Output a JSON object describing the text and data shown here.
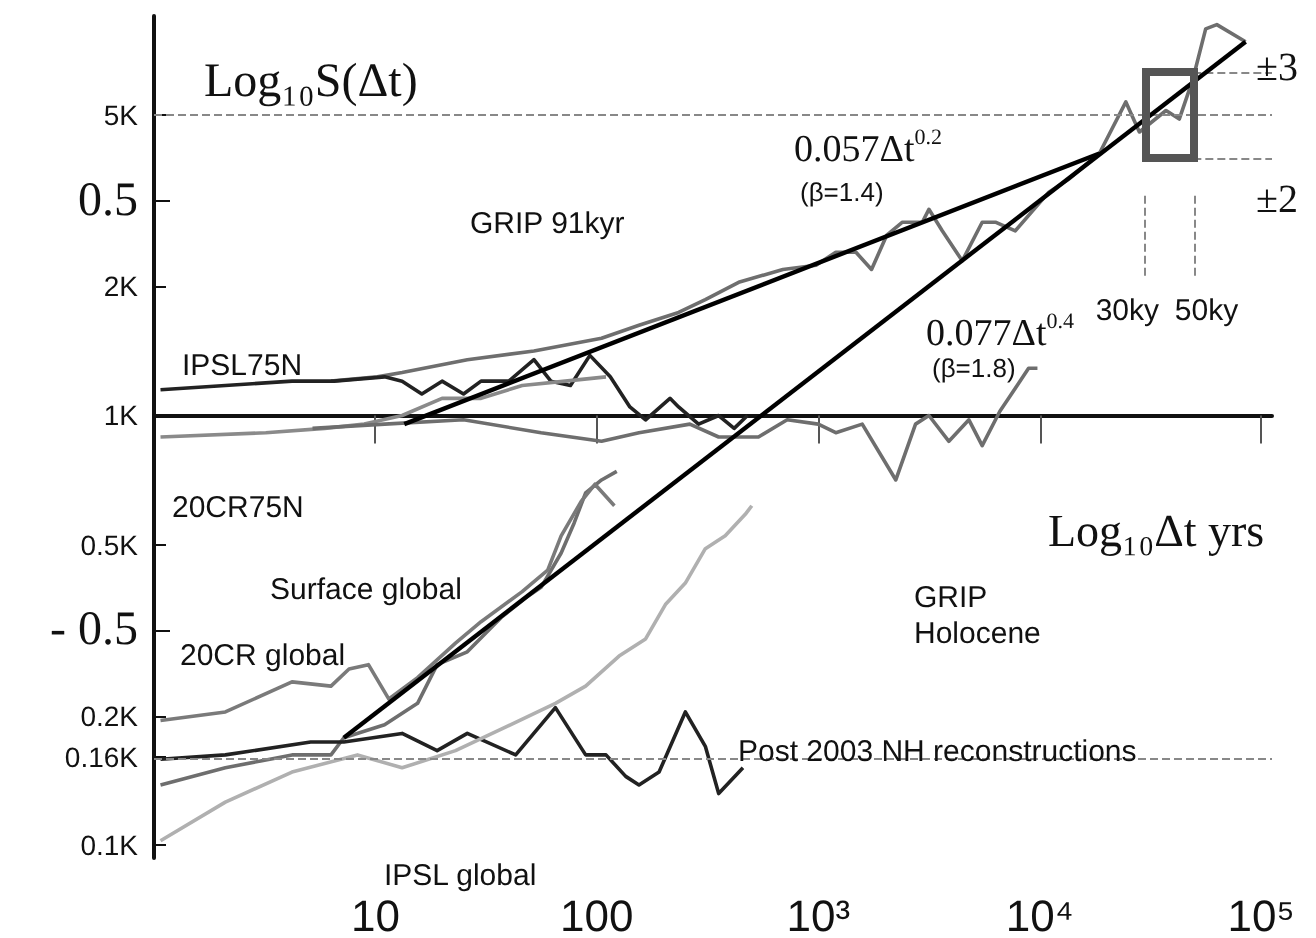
{
  "chart_data": {
    "type": "line",
    "xlabel": "Log₁₀Δt yrs",
    "ylabel": "Log₁₀S(Δt)",
    "marker": "none",
    "log": "xy",
    "xlim": [
      1,
      112000
    ],
    "xticks": [
      {
        "value": 10,
        "label": "10"
      },
      {
        "value": 100,
        "label": "100"
      },
      {
        "value": 1000,
        "label": "10³"
      },
      {
        "value": 10000,
        "label": "10⁴"
      },
      {
        "value": 100000,
        "label": "10⁵"
      }
    ],
    "ylim": [
      0.0933,
      8.51
    ],
    "yticks": [
      {
        "value": 5,
        "label": "5K"
      },
      {
        "value": 2,
        "label": "2K"
      },
      {
        "value": 1,
        "label": "1K"
      },
      {
        "value": 0.5,
        "label": "0.5K"
      },
      {
        "value": 0.2,
        "label": "0.2K"
      },
      {
        "value": 0.16,
        "label": "0.16K"
      },
      {
        "value": 0.1,
        "label": "0.1K"
      }
    ],
    "y2lim": [
      -1.03,
      0.93
    ],
    "y2ticks": [
      0.5,
      {
        "value": -0.5,
        "label": "- 0.5"
      }
    ],
    "series": [
      {
        "axis": "y2",
        "color": "#6e6e6e",
        "x": [
          6.3,
          10.2,
          13.2,
          26,
          52,
          105,
          155,
          234,
          309,
          437,
          692,
          977,
          1200,
          1480,
          1740,
          2040,
          2400,
          2950,
          3160,
          3630,
          4470,
          5500,
          6310,
          7760,
          11000,
          13500,
          18600,
          24500,
          28200,
          37200,
          42700,
          49000,
          56200,
          63100,
          85100
        ],
        "values": [
          0.08,
          0.09,
          0.1,
          0.13,
          0.15,
          0.18,
          0.21,
          0.24,
          0.27,
          0.31,
          0.34,
          0.35,
          0.38,
          0.38,
          0.34,
          0.42,
          0.45,
          0.45,
          0.48,
          0.43,
          0.36,
          0.45,
          0.45,
          0.43,
          0.52,
          0.55,
          0.61,
          0.73,
          0.66,
          0.71,
          0.69,
          0.78,
          0.9,
          0.91,
          0.87
        ]
      },
      {
        "axis": "y2",
        "color": "#222222",
        "x": [
          1.07,
          2.1,
          4.2,
          6.5,
          11,
          13.2,
          16.2,
          20,
          25,
          30,
          40,
          52,
          62,
          76,
          93,
          115,
          141,
          166,
          214,
          234,
          288,
          355,
          417,
          479
        ],
        "values": [
          0.06,
          0.07,
          0.08,
          0.08,
          0.09,
          0.08,
          0.05,
          0.08,
          0.05,
          0.08,
          0.08,
          0.13,
          0.08,
          0.07,
          0.14,
          0.09,
          0.02,
          -0.01,
          0.04,
          0.02,
          -0.02,
          0.0,
          -0.03,
          0.0
        ]
      },
      {
        "axis": "y2",
        "color": "#8a8a8a",
        "x": [
          1.07,
          3.2,
          5.9,
          8.9,
          13.2,
          20,
          30,
          46,
          72,
          110
        ],
        "values": [
          -0.05,
          -0.04,
          -0.03,
          -0.02,
          0.0,
          0.04,
          0.04,
          0.07,
          0.08,
          0.09
        ]
      },
      {
        "axis": "y2",
        "color": "#6e6e6e",
        "x": [
          5.2,
          11,
          25,
          56,
          105,
          155,
          263,
          355,
          537,
          724,
          1000,
          1200,
          1580,
          2240,
          2750,
          3160,
          3890,
          4790,
          5500,
          6610,
          7240,
          8910,
          9770
        ],
        "values": [
          -0.03,
          -0.02,
          -0.01,
          -0.04,
          -0.06,
          -0.04,
          -0.02,
          -0.05,
          -0.05,
          -0.01,
          -0.02,
          -0.04,
          -0.02,
          -0.15,
          -0.02,
          0.0,
          -0.06,
          -0.01,
          -0.07,
          0.01,
          0.04,
          0.11,
          0.11
        ]
      },
      {
        "axis": "y2",
        "color": "#6e6e6e",
        "x": [
          1.07,
          2.1,
          4.2,
          6.3,
          7.2,
          11,
          15.5,
          19,
          26,
          37,
          49,
          56,
          69,
          79,
          89,
          105,
          123
        ],
        "values": [
          -0.86,
          -0.82,
          -0.79,
          -0.79,
          -0.75,
          -0.72,
          -0.67,
          -0.58,
          -0.55,
          -0.47,
          -0.42,
          -0.4,
          -0.32,
          -0.25,
          -0.18,
          -0.15,
          -0.13
        ]
      },
      {
        "axis": "y2",
        "color": "#7a7a7a",
        "x": [
          1.07,
          2.1,
          4.2,
          6.3,
          7.6,
          9.3,
          11.5,
          15.5,
          23,
          30,
          46,
          60,
          69,
          85,
          98,
          120
        ],
        "values": [
          -0.71,
          -0.69,
          -0.62,
          -0.63,
          -0.59,
          -0.58,
          -0.66,
          -0.61,
          -0.53,
          -0.48,
          -0.41,
          -0.36,
          -0.28,
          -0.2,
          -0.16,
          -0.21
        ]
      },
      {
        "axis": "y2",
        "color": "#222222",
        "x": [
          1.07,
          2.1,
          5.1,
          7.2,
          13.2,
          19,
          26,
          43,
          65,
          89,
          110,
          135,
          155,
          191,
          251,
          309,
          355,
          457
        ],
        "values": [
          -0.8,
          -0.79,
          -0.76,
          -0.76,
          -0.74,
          -0.78,
          -0.74,
          -0.79,
          -0.68,
          -0.79,
          -0.79,
          -0.84,
          -0.86,
          -0.83,
          -0.69,
          -0.77,
          -0.88,
          -0.82
        ]
      },
      {
        "axis": "y2",
        "color": "#b0b0b0",
        "x": [
          1.07,
          2.1,
          4.2,
          8.3,
          13.2,
          23,
          37,
          65,
          89,
          126,
          166,
          204,
          251,
          309,
          380,
          468,
          501
        ],
        "values": [
          -0.99,
          -0.9,
          -0.83,
          -0.79,
          -0.82,
          -0.78,
          -0.73,
          -0.67,
          -0.63,
          -0.56,
          -0.52,
          -0.44,
          -0.39,
          -0.31,
          -0.28,
          -0.23,
          -0.21
        ]
      },
      {
        "axis": "y2",
        "color": "#000000",
        "x": [
          13.5,
          18600
        ],
        "values": [
          -0.02,
          0.61
        ]
      },
      {
        "axis": "y2",
        "color": "#000000",
        "x": [
          7.2,
          85100
        ],
        "values": [
          -0.75,
          0.87
        ]
      }
    ],
    "ref_lines": [
      {
        "axis": "y",
        "value": 5,
        "color": "#888888",
        "line_style": "dashed"
      },
      {
        "axis": "y",
        "value": 0.16,
        "color": "#888888",
        "line_style": "dashed"
      },
      {
        "axis": "y2",
        "value": 0.8,
        "color": "#888888",
        "line_style": "dashed"
      },
      {
        "axis": "y2",
        "value": 0.6,
        "color": "#888888",
        "line_style": "dashed"
      },
      {
        "axis": "x",
        "value": 30000,
        "label": "30ky",
        "color": "#888888",
        "line_style": "dashed"
      },
      {
        "axis": "x",
        "value": 50000,
        "label": "50ky",
        "color": "#888888",
        "line_style": "dashed"
      }
    ],
    "annotations": [
      "GRIP 91kyr",
      "IPSL75N",
      "20CR75N",
      "Surface global",
      "20CR global",
      "Post 2003 NH reconstructions",
      "IPSL global",
      "GRIP\nHolocene",
      "0.057Δt$^{0.2}$",
      "(β=1.4)",
      "0.077Δt$^{0.4}$",
      "(β=1.8)",
      "±3",
      "±2"
    ]
  }
}
